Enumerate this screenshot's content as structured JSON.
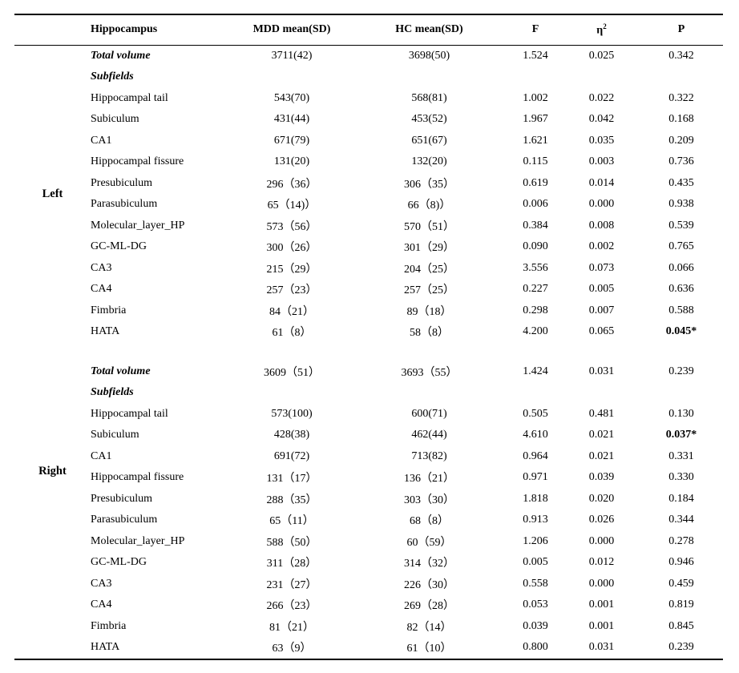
{
  "table": {
    "headers": [
      {
        "label": "Hippocampus"
      },
      {
        "label": "MDD mean(SD)"
      },
      {
        "label": "HC mean(SD)"
      },
      {
        "label": "F"
      },
      {
        "label": "η",
        "sup": "2"
      },
      {
        "label": "P"
      }
    ],
    "sections": [
      {
        "side": "Left",
        "rows": [
          {
            "label": "Total volume",
            "style": "bold-italic",
            "mdd": "3711(42)",
            "hc": "3698(50)",
            "f": "1.524",
            "eta2": "0.025",
            "p": "0.342",
            "p_bold": false
          },
          {
            "label": "Subfields",
            "style": "bold-italic",
            "mdd": "",
            "hc": "",
            "f": "",
            "eta2": "",
            "p": "",
            "p_bold": false
          },
          {
            "label": "Hippocampal tail",
            "mdd": "543(70)",
            "hc": "568(81)",
            "f": "1.002",
            "eta2": "0.022",
            "p": "0.322",
            "p_bold": false
          },
          {
            "label": "Subiculum",
            "mdd": "431(44)",
            "hc": "453(52)",
            "f": "1.967",
            "eta2": "0.042",
            "p": "0.168",
            "p_bold": false
          },
          {
            "label": "CA1",
            "mdd": "671(79)",
            "hc": "651(67)",
            "f": "1.621",
            "eta2": "0.035",
            "p": "0.209",
            "p_bold": false
          },
          {
            "label": "Hippocampal fissure",
            "mdd": "131(20)",
            "hc": "132(20)",
            "f": "0.115",
            "eta2": "0.003",
            "p": "0.736",
            "p_bold": false
          },
          {
            "label": "Presubiculum",
            "mdd": "296（36）",
            "hc": "306（35）",
            "f": "0.619",
            "eta2": "0.014",
            "p": "0.435",
            "p_bold": false
          },
          {
            "label": "Parasubiculum",
            "mdd": "65（14)）",
            "hc": "66（8)）",
            "f": "0.006",
            "eta2": "0.000",
            "p": "0.938",
            "p_bold": false
          },
          {
            "label": "Molecular_layer_HP",
            "mdd": "573（56）",
            "hc": "570（51）",
            "f": "0.384",
            "eta2": "0.008",
            "p": "0.539",
            "p_bold": false
          },
          {
            "label": "GC-ML-DG",
            "mdd": "300（26）",
            "hc": "301（29）",
            "f": "0.090",
            "eta2": "0.002",
            "p": "0.765",
            "p_bold": false
          },
          {
            "label": "CA3",
            "mdd": "215（29）",
            "hc": "204（25）",
            "f": "3.556",
            "eta2": "0.073",
            "p": "0.066",
            "p_bold": false
          },
          {
            "label": "CA4",
            "mdd": "257（23）",
            "hc": "257（25）",
            "f": "0.227",
            "eta2": "0.005",
            "p": "0.636",
            "p_bold": false
          },
          {
            "label": "Fimbria",
            "mdd": "84（21）",
            "hc": "89（18）",
            "f": "0.298",
            "eta2": "0.007",
            "p": "0.588",
            "p_bold": false
          },
          {
            "label": "HATA",
            "mdd": "61（8）",
            "hc": "58（8）",
            "f": "4.200",
            "eta2": "0.065",
            "p": "0.045*",
            "p_bold": true
          }
        ]
      },
      {
        "side": "Right",
        "rows": [
          {
            "label": "Total volume",
            "style": "bold-italic",
            "mdd": "3609（51）",
            "hc": "3693（55）",
            "f": "1.424",
            "eta2": "0.031",
            "p": "0.239",
            "p_bold": false
          },
          {
            "label": "Subfields",
            "style": "bold-italic",
            "mdd": "",
            "hc": "",
            "f": "",
            "eta2": "",
            "p": "",
            "p_bold": false
          },
          {
            "label": "Hippocampal tail",
            "mdd": "573(100)",
            "hc": "600(71)",
            "f": "0.505",
            "eta2": "0.481",
            "p": "0.130",
            "p_bold": false
          },
          {
            "label": "Subiculum",
            "mdd": "428(38)",
            "hc": "462(44)",
            "f": "4.610",
            "eta2": "0.021",
            "p": "0.037*",
            "p_bold": true
          },
          {
            "label": "CA1",
            "mdd": "691(72)",
            "hc": "713(82)",
            "f": "0.964",
            "eta2": "0.021",
            "p": "0.331",
            "p_bold": false
          },
          {
            "label": "Hippocampal fissure",
            "mdd": "131（17）",
            "hc": "136（21）",
            "f": "0.971",
            "eta2": "0.039",
            "p": "0.330",
            "p_bold": false
          },
          {
            "label": "Presubiculum",
            "mdd": "288（35）",
            "hc": "303（30）",
            "f": "1.818",
            "eta2": "0.020",
            "p": "0.184",
            "p_bold": false
          },
          {
            "label": "Parasubiculum",
            "mdd": "65（11）",
            "hc": "68（8）",
            "f": "0.913",
            "eta2": "0.026",
            "p": "0.344",
            "p_bold": false
          },
          {
            "label": "Molecular_layer_HP",
            "mdd": "588（50）",
            "hc": "60（59）",
            "f": "1.206",
            "eta2": "0.000",
            "p": "0.278",
            "p_bold": false
          },
          {
            "label": "GC-ML-DG",
            "mdd": "311（28）",
            "hc": "314（32）",
            "f": "0.005",
            "eta2": "0.012",
            "p": "0.946",
            "p_bold": false
          },
          {
            "label": "CA3",
            "mdd": "231（27）",
            "hc": "226（30）",
            "f": "0.558",
            "eta2": "0.000",
            "p": "0.459",
            "p_bold": false
          },
          {
            "label": "CA4",
            "mdd": "266（23）",
            "hc": "269（28）",
            "f": "0.053",
            "eta2": "0.001",
            "p": "0.819",
            "p_bold": false
          },
          {
            "label": "Fimbria",
            "mdd": "81（21）",
            "hc": "82（14）",
            "f": "0.039",
            "eta2": "0.001",
            "p": "0.845",
            "p_bold": false
          },
          {
            "label": "HATA",
            "mdd": "63（9）",
            "hc": "61（10）",
            "f": "0.800",
            "eta2": "0.031",
            "p": "0.239",
            "p_bold": false
          }
        ]
      }
    ]
  }
}
